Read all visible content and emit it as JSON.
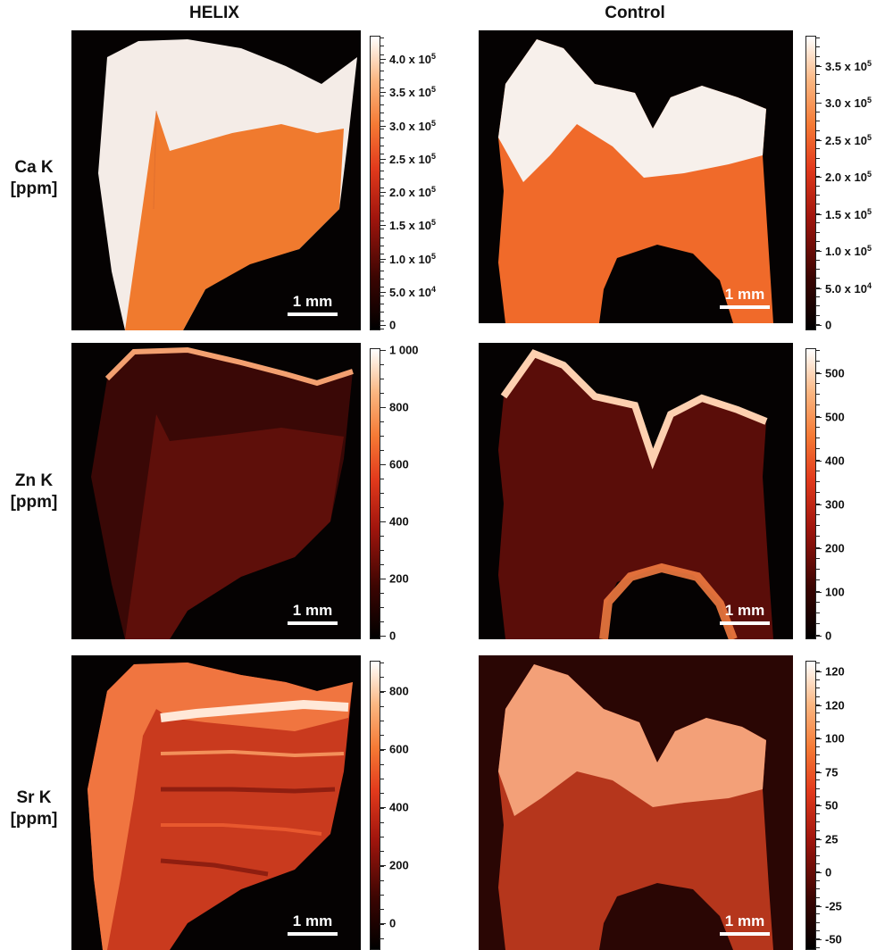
{
  "columns": [
    "HELIX",
    "Control"
  ],
  "rows": [
    {
      "label_line1": "Ca K",
      "label_line2": "[ppm]"
    },
    {
      "label_line1": "Zn K",
      "label_line2": "[ppm]"
    },
    {
      "label_line1": "Sr K",
      "label_line2": "[ppm]"
    }
  ],
  "scalebar_label": "1 mm",
  "colorbars": {
    "ca_helix": [
      "4.0 x 10",
      "3.5 x 10",
      "3.0 x 10",
      "2.5 x 10",
      "2.0 x 10",
      "1.5 x 10",
      "1.0 x 10",
      "5.0 x 10",
      "0"
    ],
    "ca_helix_exp": [
      "5",
      "5",
      "5",
      "5",
      "5",
      "5",
      "5",
      "4",
      ""
    ],
    "ca_control": [
      "3.5 x 10",
      "3.0 x 10",
      "2.5 x 10",
      "2.0 x 10",
      "1.5 x 10",
      "1.0 x 10",
      "5.0 x 10",
      "0"
    ],
    "ca_control_exp": [
      "5",
      "5",
      "5",
      "5",
      "5",
      "5",
      "4",
      ""
    ],
    "zn_helix": [
      "1 000",
      "800",
      "600",
      "400",
      "200",
      "0"
    ],
    "zn_control": [
      "500",
      "500",
      "400",
      "300",
      "200",
      "100",
      "0"
    ],
    "sr_helix": [
      "800",
      "600",
      "400",
      "200",
      "0"
    ],
    "sr_control": [
      "120",
      "120",
      "100",
      "75",
      "50",
      "25",
      "0",
      "-25",
      "-50"
    ]
  },
  "colors": {
    "enamel_ca": "#fbe6d6",
    "dentin_ca": "#f07a2e",
    "background": "#050202"
  }
}
